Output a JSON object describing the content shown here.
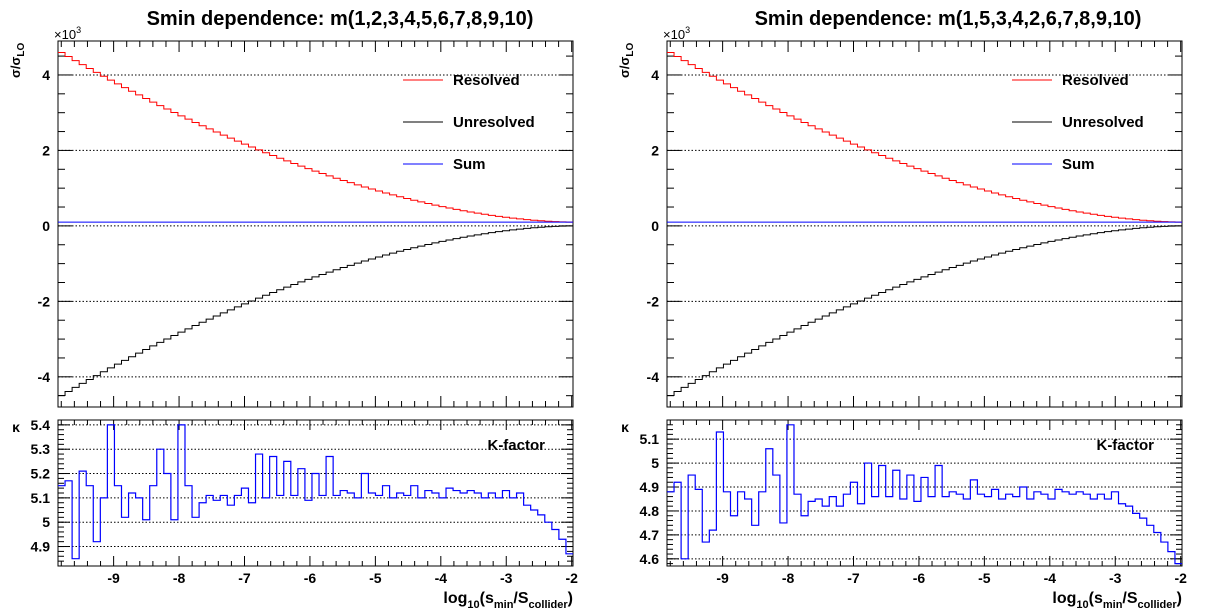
{
  "chart_data": [
    {
      "type": "line",
      "title": "Smin dependence: m(1,2,3,4,5,6,7,8,9,10)",
      "top": {
        "ylabel": "σ/σLO",
        "ylabel_main": "σ/σ",
        "ylabel_sub": "LO",
        "exponent_label": "×10",
        "exponent_power": "3",
        "ylim": [
          -4.8,
          4.9
        ],
        "yticks": [
          -4,
          -2,
          0,
          2,
          4
        ],
        "grid": true,
        "legend_position": "top-right",
        "series": [
          {
            "name": "Resolved",
            "color": "#ff0000",
            "start": 4.65,
            "end": 0.1
          },
          {
            "name": "Unresolved",
            "color": "#000000",
            "start": -4.55,
            "end": 0.0
          },
          {
            "name": "Sum",
            "color": "#0000ff",
            "constant": 0.1
          }
        ]
      },
      "bottom": {
        "ylabel": "κ",
        "legend": "K-factor",
        "ylim": [
          4.82,
          5.42
        ],
        "yticks": [
          4.9,
          5,
          5.1,
          5.2,
          5.3,
          5.4
        ],
        "ytick_labels": [
          "4.9",
          "5",
          "5.1",
          "5.2",
          "5.3",
          "5.4"
        ],
        "grid": true,
        "color": "#0000ff",
        "values": [
          5.15,
          5.17,
          4.85,
          5.21,
          5.15,
          4.92,
          5.1,
          5.4,
          5.15,
          5.02,
          5.12,
          5.1,
          5.01,
          5.15,
          5.3,
          5.2,
          5.01,
          5.4,
          5.15,
          5.02,
          5.08,
          5.11,
          5.09,
          5.11,
          5.07,
          5.11,
          5.14,
          5.08,
          5.28,
          5.1,
          5.27,
          5.11,
          5.25,
          5.11,
          5.22,
          5.09,
          5.2,
          5.11,
          5.27,
          5.11,
          5.13,
          5.12,
          5.1,
          5.2,
          5.12,
          5.11,
          5.15,
          5.1,
          5.12,
          5.11,
          5.15,
          5.1,
          5.13,
          5.12,
          5.1,
          5.14,
          5.13,
          5.12,
          5.13,
          5.12,
          5.1,
          5.12,
          5.1,
          5.13,
          5.1,
          5.12,
          5.07,
          5.05,
          5.03,
          5.0,
          4.97,
          4.93,
          4.87
        ]
      },
      "xlabel": "log10(smin/Scollider)",
      "xlabel_parts": [
        "log",
        "10",
        "(s",
        "min",
        "/S",
        "collider",
        ")"
      ],
      "xlim": [
        -9.85,
        -1.98
      ],
      "xticks": [
        -9,
        -8,
        -7,
        -6,
        -5,
        -4,
        -3,
        -2
      ]
    },
    {
      "type": "line",
      "title": "Smin dependence: m(1,5,3,4,2,6,7,8,9,10)",
      "top": {
        "ylabel": "σ/σLO",
        "ylabel_main": "σ/σ",
        "ylabel_sub": "LO",
        "exponent_label": "×10",
        "exponent_power": "3",
        "ylim": [
          -4.8,
          4.9
        ],
        "yticks": [
          -4,
          -2,
          0,
          2,
          4
        ],
        "grid": true,
        "legend_position": "top-right",
        "series": [
          {
            "name": "Resolved",
            "color": "#ff0000",
            "start": 4.65,
            "end": 0.1
          },
          {
            "name": "Unresolved",
            "color": "#000000",
            "start": -4.55,
            "end": 0.0
          },
          {
            "name": "Sum",
            "color": "#0000ff",
            "constant": 0.1
          }
        ]
      },
      "bottom": {
        "ylabel": "κ",
        "legend": "K-factor",
        "ylim": [
          4.57,
          5.18
        ],
        "yticks": [
          4.6,
          4.7,
          4.8,
          4.9,
          5,
          5.1
        ],
        "ytick_labels": [
          "4.6",
          "4.7",
          "4.8",
          "4.9",
          "5",
          "5.1"
        ],
        "grid": true,
        "color": "#0000ff",
        "values": [
          4.88,
          4.92,
          4.6,
          4.95,
          4.89,
          4.67,
          4.72,
          5.13,
          4.88,
          4.78,
          4.88,
          4.85,
          4.74,
          4.88,
          5.06,
          4.95,
          4.75,
          5.16,
          4.87,
          4.78,
          4.84,
          4.85,
          4.82,
          4.86,
          4.82,
          4.87,
          4.92,
          4.83,
          5.0,
          4.86,
          4.99,
          4.86,
          4.97,
          4.85,
          4.95,
          4.84,
          4.94,
          4.86,
          4.99,
          4.86,
          4.88,
          4.87,
          4.85,
          4.93,
          4.87,
          4.86,
          4.89,
          4.85,
          4.87,
          4.86,
          4.9,
          4.85,
          4.88,
          4.87,
          4.85,
          4.89,
          4.88,
          4.87,
          4.88,
          4.87,
          4.85,
          4.87,
          4.85,
          4.88,
          4.83,
          4.82,
          4.79,
          4.77,
          4.74,
          4.71,
          4.67,
          4.63,
          4.58
        ]
      },
      "xlabel": "log10(smin/Scollider)",
      "xlabel_parts": [
        "log",
        "10",
        "(s",
        "min",
        "/S",
        "collider",
        ")"
      ],
      "xlim": [
        -9.85,
        -1.98
      ],
      "xticks": [
        -9,
        -8,
        -7,
        -6,
        -5,
        -4,
        -3,
        -2
      ]
    }
  ]
}
